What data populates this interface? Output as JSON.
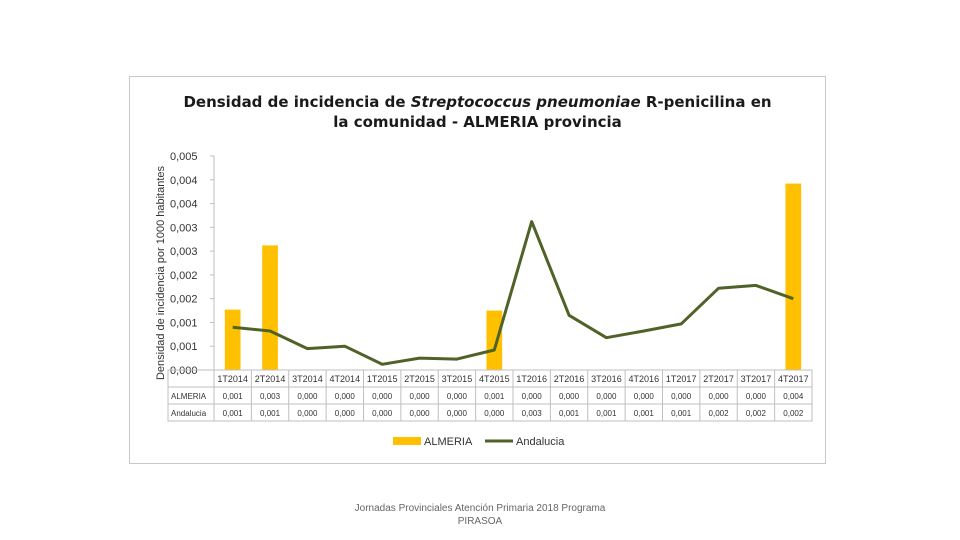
{
  "chart_data": {
    "type": "bar+line",
    "title_line1_pre": "Densidad de incidencia de ",
    "title_line1_italic": "Streptococcus pneumoniae",
    "title_line1_post": " R-penicilina en",
    "title_line2": "la comunidad - ALMERIA provincia",
    "ylabel": "Densidad de incidencia por 1000 habitantes",
    "ylim": [
      0,
      0.0045
    ],
    "yticks": [
      "0,000",
      "0,001",
      "0,001",
      "0,002",
      "0,002",
      "0,003",
      "0,003",
      "0,004",
      "0,004",
      "0,005"
    ],
    "categories": [
      "1T2014",
      "2T2014",
      "3T2014",
      "4T2014",
      "1T2015",
      "2T2015",
      "3T2015",
      "4T2015",
      "1T2016",
      "2T2016",
      "3T2016",
      "4T2016",
      "1T2017",
      "2T2017",
      "3T2017",
      "4T2017"
    ],
    "series": [
      {
        "name": "ALMERIA",
        "kind": "bar",
        "color": "#FFC000",
        "values": [
          0.00127,
          0.00262,
          0,
          0,
          0,
          0,
          0,
          0.00125,
          0,
          0,
          0,
          0,
          0,
          0,
          0,
          0.00392
        ],
        "labels": [
          "0,001",
          "0,003",
          "0,000",
          "0,000",
          "0,000",
          "0,000",
          "0,000",
          "0,001",
          "0,000",
          "0,000",
          "0,000",
          "0,000",
          "0,000",
          "0,000",
          "0,000",
          "0,004"
        ]
      },
      {
        "name": "Andalucia",
        "kind": "line",
        "color": "#4F6228",
        "values": [
          0.0009,
          0.00082,
          0.00045,
          0.0005,
          0.00012,
          0.00025,
          0.00023,
          0.00042,
          0.00312,
          0.00115,
          0.00068,
          0.00082,
          0.00097,
          0.00172,
          0.00178,
          0.0015
        ],
        "labels": [
          "0,001",
          "0,001",
          "0,000",
          "0,000",
          "0,000",
          "0,000",
          "0,000",
          "0,000",
          "0,003",
          "0,001",
          "0,001",
          "0,001",
          "0,001",
          "0,002",
          "0,002",
          "0,002"
        ]
      }
    ],
    "legend": "bottom"
  },
  "footer": {
    "line1": "Jornadas Provinciales Atención Primaria 2018 Programa",
    "line2": "PIRASOA"
  }
}
